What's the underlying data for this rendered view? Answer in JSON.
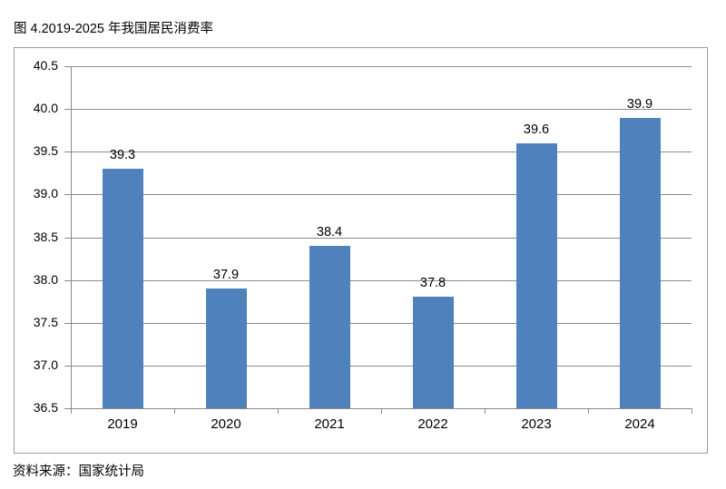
{
  "page": {
    "title": "图 4.2019-2025 年我国居民消费率",
    "source": "资料来源：国家统计局"
  },
  "chart_data": {
    "type": "bar",
    "title": "图 4.2019-2025 年我国居民消费率",
    "categories": [
      "2019",
      "2020",
      "2021",
      "2022",
      "2023",
      "2024"
    ],
    "values": [
      39.3,
      37.9,
      38.4,
      37.8,
      39.6,
      39.9
    ],
    "value_labels": [
      "39.3",
      "37.9",
      "38.4",
      "37.8",
      "39.6",
      "39.9"
    ],
    "xlabel": "",
    "ylabel": "",
    "ylim": [
      36.5,
      40.5
    ],
    "ytick_step": 0.5,
    "yticks": [
      "36.5",
      "37.0",
      "37.5",
      "38.0",
      "38.5",
      "39.0",
      "39.5",
      "40.0",
      "40.5"
    ],
    "grid": true,
    "legend": "none",
    "bar_color": "#4F81BD",
    "gridline_color": "#8a8a8a",
    "axis_color": "#8a8a8a",
    "frame_border_color": "#9b9b9b",
    "text_color": "#000000",
    "source": "资料来源：国家统计局"
  }
}
